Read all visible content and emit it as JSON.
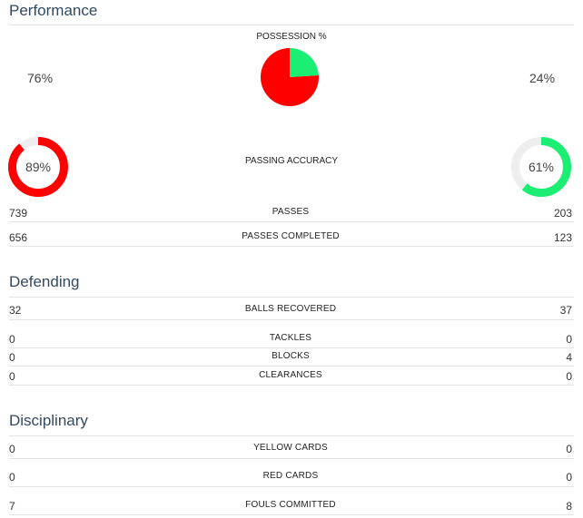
{
  "sections": {
    "performance": "Performance",
    "defending": "Defending",
    "disciplinary": "Disciplinary"
  },
  "possession": {
    "label": "POSSESSION %",
    "home": "76%",
    "away": "24%",
    "home_value": 76,
    "away_value": 24,
    "home_color": "#ff0000",
    "away_color": "#1aee73"
  },
  "passing_accuracy": {
    "label": "PASSING ACCURACY",
    "home": "89%",
    "away": "61%",
    "home_value": 89,
    "away_value": 61,
    "home_color": "#ff0000",
    "away_color": "#1aee73",
    "track_color": "#eeeeee"
  },
  "stats": {
    "passes": {
      "label": "PASSES",
      "home": "739",
      "away": "203"
    },
    "passes_completed": {
      "label": "PASSES COMPLETED",
      "home": "656",
      "away": "123"
    },
    "balls_recovered": {
      "label": "BALLS RECOVERED",
      "home": "32",
      "away": "37"
    },
    "tackles": {
      "label": "TACKLES",
      "home": "0",
      "away": "0"
    },
    "blocks": {
      "label": "BLOCKS",
      "home": "0",
      "away": "4"
    },
    "clearances": {
      "label": "CLEARANCES",
      "home": "0",
      "away": "0"
    },
    "yellow_cards": {
      "label": "YELLOW CARDS",
      "home": "0",
      "away": "0"
    },
    "red_cards": {
      "label": "RED CARDS",
      "home": "0",
      "away": "0"
    },
    "fouls_committed": {
      "label": "FOULS COMMITTED",
      "home": "7",
      "away": "8"
    }
  }
}
